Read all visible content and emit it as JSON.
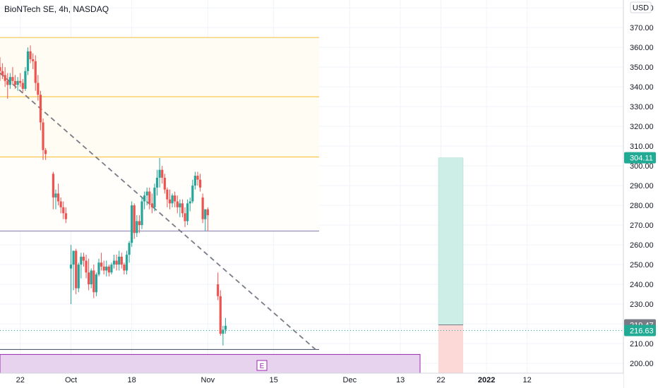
{
  "chart_data": {
    "type": "candlestick",
    "title": "BioNTech SE, 4h, NASDAQ",
    "currency": "USD",
    "y_ticks": [
      200,
      210,
      220,
      230,
      240,
      250,
      260,
      270,
      280,
      290,
      300,
      310,
      320,
      330,
      340,
      350,
      360,
      370,
      380
    ],
    "y_tick_labels": [
      "200.00",
      "210.00",
      "220.00",
      "230.00",
      "240.00",
      "250.00",
      "260.00",
      "270.00",
      "280.00",
      "290.00",
      "300.00",
      "310.00",
      "320.00",
      "330.00",
      "340.00",
      "350.00",
      "360.00",
      "370.00",
      "380.00"
    ],
    "ylim": [
      195,
      384
    ],
    "x_ticks": [
      "22",
      "Oct",
      "18",
      "Nov",
      "15",
      "Dec",
      "13",
      "22",
      "2022",
      "12"
    ],
    "x_tick_positions": [
      -10,
      0,
      12,
      27,
      40,
      55,
      65,
      73,
      82,
      90
    ],
    "xlim": [
      -14,
      109
    ],
    "candles": [
      [
        -14.0,
        350,
        355,
        343,
        348
      ],
      [
        -13.5,
        348,
        352,
        344,
        346
      ],
      [
        -13.0,
        346,
        350,
        340,
        343
      ],
      [
        -12.5,
        343,
        347,
        334,
        341
      ],
      [
        -12.0,
        341,
        347,
        339,
        345
      ],
      [
        -11.5,
        345,
        350,
        341,
        343
      ],
      [
        -11.0,
        343,
        346,
        339,
        341
      ],
      [
        -10.5,
        341,
        345,
        338,
        343
      ],
      [
        -10.0,
        343,
        347,
        340,
        342
      ],
      [
        -9.5,
        342,
        344,
        337,
        339
      ],
      [
        -9.0,
        339,
        350,
        338,
        348
      ],
      [
        -8.5,
        348,
        360,
        346,
        358
      ],
      [
        -8.0,
        358,
        361,
        352,
        354
      ],
      [
        -7.5,
        354,
        357,
        349,
        353
      ],
      [
        -7.0,
        353,
        356,
        338,
        342
      ],
      [
        -6.5,
        342,
        346,
        333,
        336
      ],
      [
        -6.0,
        336,
        338,
        318,
        322
      ],
      [
        -5.5,
        322,
        324,
        303,
        308
      ],
      [
        -5.0,
        308,
        309,
        303,
        306
      ],
      [
        -3.5,
        296,
        297,
        278,
        284
      ],
      [
        -3.0,
        284,
        288,
        278,
        286
      ],
      [
        -2.5,
        286,
        291,
        280,
        282
      ],
      [
        -2.0,
        282,
        284,
        276,
        279
      ],
      [
        -1.5,
        279,
        282,
        273,
        276
      ],
      [
        -1.0,
        276,
        279,
        271,
        273
      ],
      [
        0.0,
        248,
        260,
        230,
        250
      ],
      [
        0.5,
        250,
        257,
        237,
        257
      ],
      [
        1.0,
        257,
        258,
        235,
        238
      ],
      [
        1.5,
        238,
        251,
        236,
        250
      ],
      [
        2.0,
        250,
        256,
        243,
        254
      ],
      [
        2.5,
        254,
        256,
        249,
        252
      ],
      [
        3.0,
        252,
        255,
        243,
        246
      ],
      [
        3.5,
        246,
        253,
        237,
        240
      ],
      [
        4.0,
        240,
        248,
        238,
        247
      ],
      [
        4.5,
        247,
        250,
        233,
        236
      ],
      [
        5.0,
        236,
        246,
        234,
        245
      ],
      [
        5.5,
        245,
        253,
        244,
        251
      ],
      [
        6.0,
        251,
        256,
        247,
        249
      ],
      [
        6.5,
        249,
        252,
        245,
        247
      ],
      [
        7.0,
        247,
        252,
        244,
        249
      ],
      [
        7.5,
        249,
        250,
        244,
        246
      ],
      [
        8.0,
        246,
        251,
        245,
        250
      ],
      [
        8.5,
        250,
        255,
        248,
        252
      ],
      [
        9.0,
        252,
        255,
        247,
        250
      ],
      [
        9.5,
        250,
        257,
        247,
        254
      ],
      [
        10.0,
        254,
        256,
        248,
        250
      ],
      [
        10.5,
        250,
        251,
        245,
        247
      ],
      [
        11.0,
        247,
        257,
        245,
        255
      ],
      [
        11.5,
        255,
        262,
        251,
        261
      ],
      [
        12.0,
        261,
        282,
        259,
        280
      ],
      [
        12.5,
        280,
        281,
        263,
        266
      ],
      [
        13.0,
        266,
        275,
        264,
        272
      ],
      [
        13.5,
        272,
        275,
        266,
        270
      ],
      [
        14.0,
        270,
        284,
        268,
        282
      ],
      [
        14.5,
        282,
        287,
        278,
        285
      ],
      [
        15.0,
        285,
        289,
        280,
        287
      ],
      [
        15.5,
        287,
        289,
        278,
        281
      ],
      [
        16.0,
        281,
        286,
        276,
        279
      ],
      [
        16.5,
        279,
        291,
        277,
        289
      ],
      [
        17.0,
        289,
        298,
        285,
        294
      ],
      [
        17.5,
        294,
        304,
        289,
        298
      ],
      [
        18.0,
        298,
        300,
        291,
        294
      ],
      [
        18.5,
        294,
        296,
        286,
        288
      ],
      [
        19.0,
        288,
        289,
        279,
        283
      ],
      [
        19.5,
        283,
        288,
        278,
        281
      ],
      [
        20.0,
        281,
        286,
        279,
        285
      ],
      [
        20.5,
        285,
        287,
        279,
        282
      ],
      [
        21.0,
        282,
        285,
        276,
        279
      ],
      [
        21.5,
        279,
        283,
        274,
        281
      ],
      [
        22.0,
        281,
        283,
        274,
        276
      ],
      [
        22.5,
        276,
        279,
        269,
        272
      ],
      [
        23.0,
        272,
        283,
        270,
        281
      ],
      [
        23.5,
        281,
        284,
        277,
        282
      ],
      [
        24.0,
        282,
        293,
        281,
        290
      ],
      [
        24.5,
        290,
        297,
        288,
        295
      ],
      [
        25.0,
        295,
        297,
        290,
        293
      ],
      [
        25.5,
        293,
        296,
        287,
        289
      ],
      [
        26.0,
        284,
        286,
        271,
        273
      ],
      [
        26.5,
        273,
        278,
        267,
        278
      ],
      [
        27.0,
        278,
        279,
        267,
        275
      ],
      [
        29.0,
        240,
        246,
        232,
        234
      ],
      [
        29.5,
        234,
        237,
        214,
        215
      ],
      [
        30.0,
        215,
        219,
        209,
        217
      ],
      [
        30.5,
        217,
        223,
        215,
        219
      ]
    ],
    "horizontal_lines": [
      {
        "price": 365,
        "color": "#f9c74f"
      },
      {
        "price": 335,
        "color": "#f9c74f"
      },
      {
        "price": 304.5,
        "color": "#f9c74f"
      },
      {
        "price": 267,
        "color": "#9590b9"
      },
      {
        "price": 207,
        "color": "#555b6e"
      }
    ],
    "trend_line": {
      "from": [
        -14,
        347
      ],
      "to": [
        31,
        207
      ]
    },
    "current_price": 216.63,
    "position": {
      "entry": 219.47,
      "target": 304.11,
      "stop_bottom": 195,
      "x_start": 61,
      "x_end": 67
    },
    "price_tags": [
      {
        "label": "304.11",
        "price": 304.11,
        "color": "#22ab94"
      },
      {
        "label": "219.47",
        "price": 219.47,
        "color": "#787b86"
      },
      {
        "label": "216.63",
        "price": 216.63,
        "color": "#22ab94"
      }
    ],
    "earnings_marker": "E",
    "earnings_band": {
      "price_top": 204.5,
      "price_bottom": 195,
      "x_start": -14,
      "x_end": 52
    },
    "colors": {
      "up": "#26a69a",
      "down": "#ef5350",
      "target_zone": "#cdeee7",
      "stop_zone": "#fcd9d7",
      "earnings_band": "#e8d3ee",
      "earnings_border": "#9c27b0",
      "zone_fill": "#fffdf3",
      "grid": "#f0f3fa"
    }
  }
}
